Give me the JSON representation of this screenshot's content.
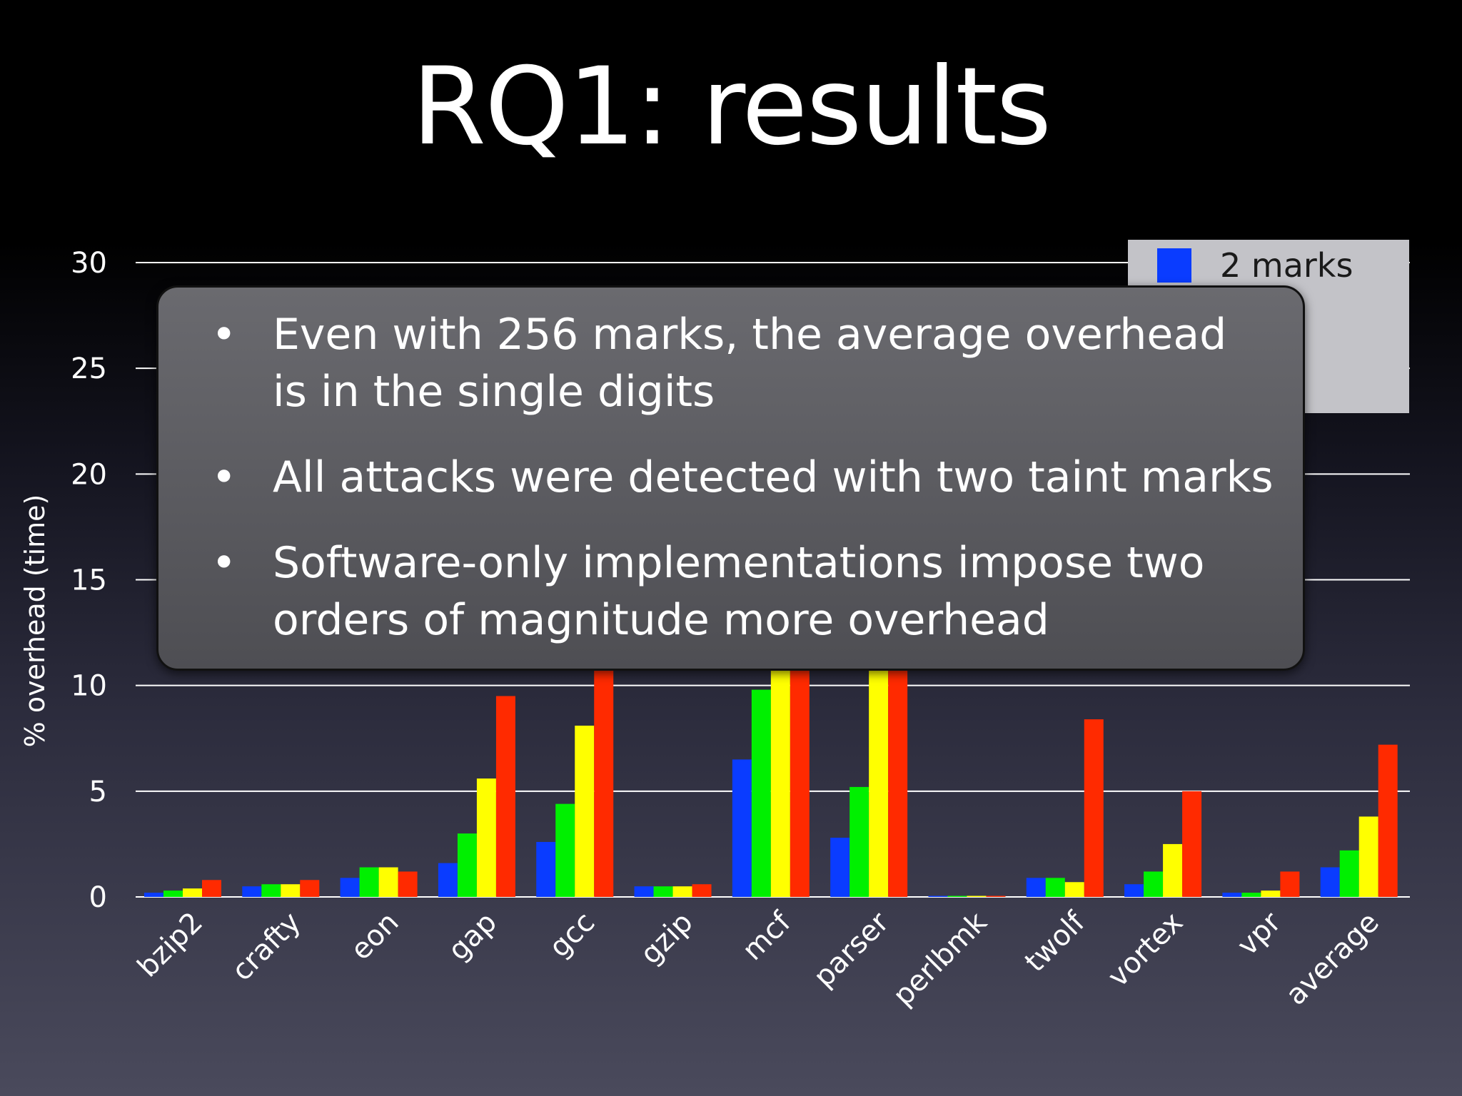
{
  "title": "RQ1: results",
  "callout": {
    "bullets": [
      "Even with 256 marks, the average overhead is in the single digits",
      "All attacks were detected with two taint marks",
      "Software-only implementations impose two orders of magnitude more overhead"
    ]
  },
  "chart_data": {
    "type": "bar",
    "ylabel": "% overhead (time)",
    "ylim": [
      0,
      30
    ],
    "yticks": [
      0,
      5,
      10,
      15,
      20,
      25,
      30
    ],
    "grid": true,
    "legend_position": "top-right",
    "categories": [
      "bzip2",
      "crafty",
      "eon",
      "gap",
      "gcc",
      "gzip",
      "mcf",
      "parser",
      "perlbmk",
      "twolf",
      "vortex",
      "vpr",
      "average"
    ],
    "series": [
      {
        "name": "2 marks",
        "color": "#0a3cff",
        "values": [
          0.2,
          0.5,
          0.9,
          1.6,
          2.6,
          0.5,
          6.5,
          2.8,
          0.05,
          0.9,
          0.6,
          0.2,
          1.4
        ]
      },
      {
        "name": "",
        "color": "#00f000",
        "values": [
          0.3,
          0.6,
          1.4,
          3.0,
          4.4,
          0.5,
          9.8,
          5.2,
          0.05,
          0.9,
          1.2,
          0.2,
          2.2
        ]
      },
      {
        "name": "",
        "color": "#ffff00",
        "values": [
          0.4,
          0.6,
          1.4,
          5.6,
          8.1,
          0.5,
          11.0,
          11.0,
          0.05,
          0.7,
          2.5,
          0.3,
          3.8
        ]
      },
      {
        "name": "",
        "color": "#ff2a00",
        "values": [
          0.8,
          0.8,
          1.2,
          9.5,
          11.0,
          0.6,
          11.0,
          11.0,
          0.05,
          8.4,
          5.0,
          1.2,
          7.2
        ]
      }
    ]
  }
}
